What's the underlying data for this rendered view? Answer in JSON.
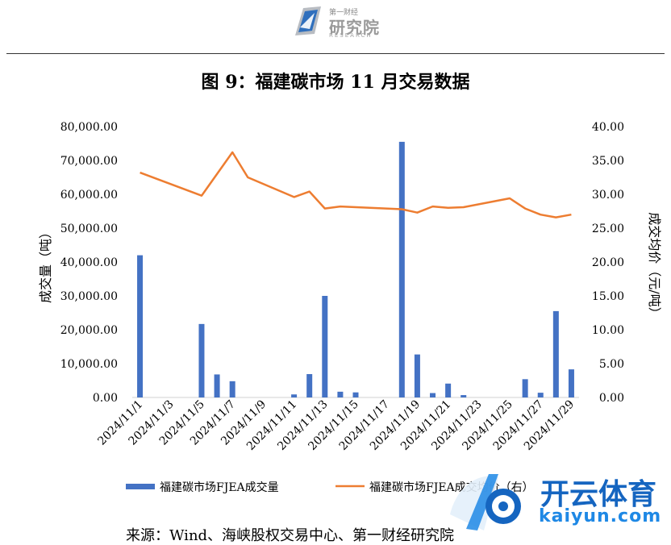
{
  "header": {
    "logo_top": "第一财经",
    "logo_main": "研究院",
    "logo_sub": "RESEARCH"
  },
  "title": "图 9：福建碳市场 11 月交易数据",
  "source": "来源：Wind、海峡股权交易中心、第一财经研究院",
  "watermark": {
    "main": "开云体育",
    "sub": "kaiyun.com"
  },
  "chart_data": {
    "type": "bar",
    "x": [
      "2024/11/1",
      "2024/11/3",
      "2024/11/5",
      "2024/11/7",
      "2024/11/9",
      "2024/11/11",
      "2024/11/13",
      "2024/11/15",
      "2024/11/17",
      "2024/11/19",
      "2024/11/21",
      "2024/11/23",
      "2024/11/25",
      "2024/11/27",
      "2024/11/29"
    ],
    "x_tick_labels": [
      "2024/11/1",
      "2024/11/3",
      "2024/11/5",
      "2024/11/7",
      "2024/11/9",
      "2024/11/11",
      "2024/11/13",
      "2024/11/15",
      "2024/11/17",
      "2024/11/19",
      "2024/11/21",
      "2024/11/23",
      "2024/11/25",
      "2024/11/27",
      "2024/11/29"
    ],
    "days": [
      1,
      2,
      3,
      4,
      5,
      6,
      7,
      8,
      9,
      10,
      11,
      12,
      13,
      14,
      15,
      16,
      17,
      18,
      19,
      20,
      21,
      22,
      23,
      24,
      25,
      26,
      27,
      28,
      29
    ],
    "ylabel": "成交量（吨）",
    "y2label": "成交均价（元/吨）",
    "ylim": [
      0,
      80000
    ],
    "y2lim": [
      0,
      40
    ],
    "y_ticks": [
      "0.00",
      "10,000.00",
      "20,000.00",
      "30,000.00",
      "40,000.00",
      "50,000.00",
      "60,000.00",
      "70,000.00",
      "80,000.00"
    ],
    "y2_ticks": [
      "0.00",
      "5.00",
      "10.00",
      "15.00",
      "20.00",
      "25.00",
      "30.00",
      "35.00",
      "40.00"
    ],
    "series": [
      {
        "name": "福建碳市场FJEA成交量",
        "type": "bar",
        "color": "#4472c4",
        "axis": "left",
        "points": [
          {
            "day": 1,
            "value": 42000
          },
          {
            "day": 5,
            "value": 21700
          },
          {
            "day": 6,
            "value": 6800
          },
          {
            "day": 7,
            "value": 4800
          },
          {
            "day": 11,
            "value": 900
          },
          {
            "day": 12,
            "value": 6900
          },
          {
            "day": 13,
            "value": 30000
          },
          {
            "day": 14,
            "value": 1700
          },
          {
            "day": 15,
            "value": 1500
          },
          {
            "day": 18,
            "value": 75500
          },
          {
            "day": 19,
            "value": 12700
          },
          {
            "day": 20,
            "value": 1300
          },
          {
            "day": 21,
            "value": 4100
          },
          {
            "day": 22,
            "value": 700
          },
          {
            "day": 26,
            "value": 5400
          },
          {
            "day": 27,
            "value": 1400
          },
          {
            "day": 28,
            "value": 25500
          },
          {
            "day": 29,
            "value": 8300
          }
        ]
      },
      {
        "name": "福建碳市场FJEA成交均价（右）",
        "type": "line",
        "color": "#ed7d31",
        "axis": "right",
        "points": [
          {
            "day": 1,
            "value": 33.2
          },
          {
            "day": 5,
            "value": 29.8
          },
          {
            "day": 7,
            "value": 36.2
          },
          {
            "day": 8,
            "value": 32.5
          },
          {
            "day": 11,
            "value": 29.6
          },
          {
            "day": 12,
            "value": 30.4
          },
          {
            "day": 13,
            "value": 27.9
          },
          {
            "day": 14,
            "value": 28.2
          },
          {
            "day": 18,
            "value": 27.8
          },
          {
            "day": 19,
            "value": 27.3
          },
          {
            "day": 20,
            "value": 28.2
          },
          {
            "day": 21,
            "value": 28.0
          },
          {
            "day": 22,
            "value": 28.1
          },
          {
            "day": 25,
            "value": 29.4
          },
          {
            "day": 26,
            "value": 27.9
          },
          {
            "day": 27,
            "value": 27.0
          },
          {
            "day": 28,
            "value": 26.6
          },
          {
            "day": 29,
            "value": 27.0
          }
        ]
      }
    ],
    "legend_position": "bottom"
  }
}
